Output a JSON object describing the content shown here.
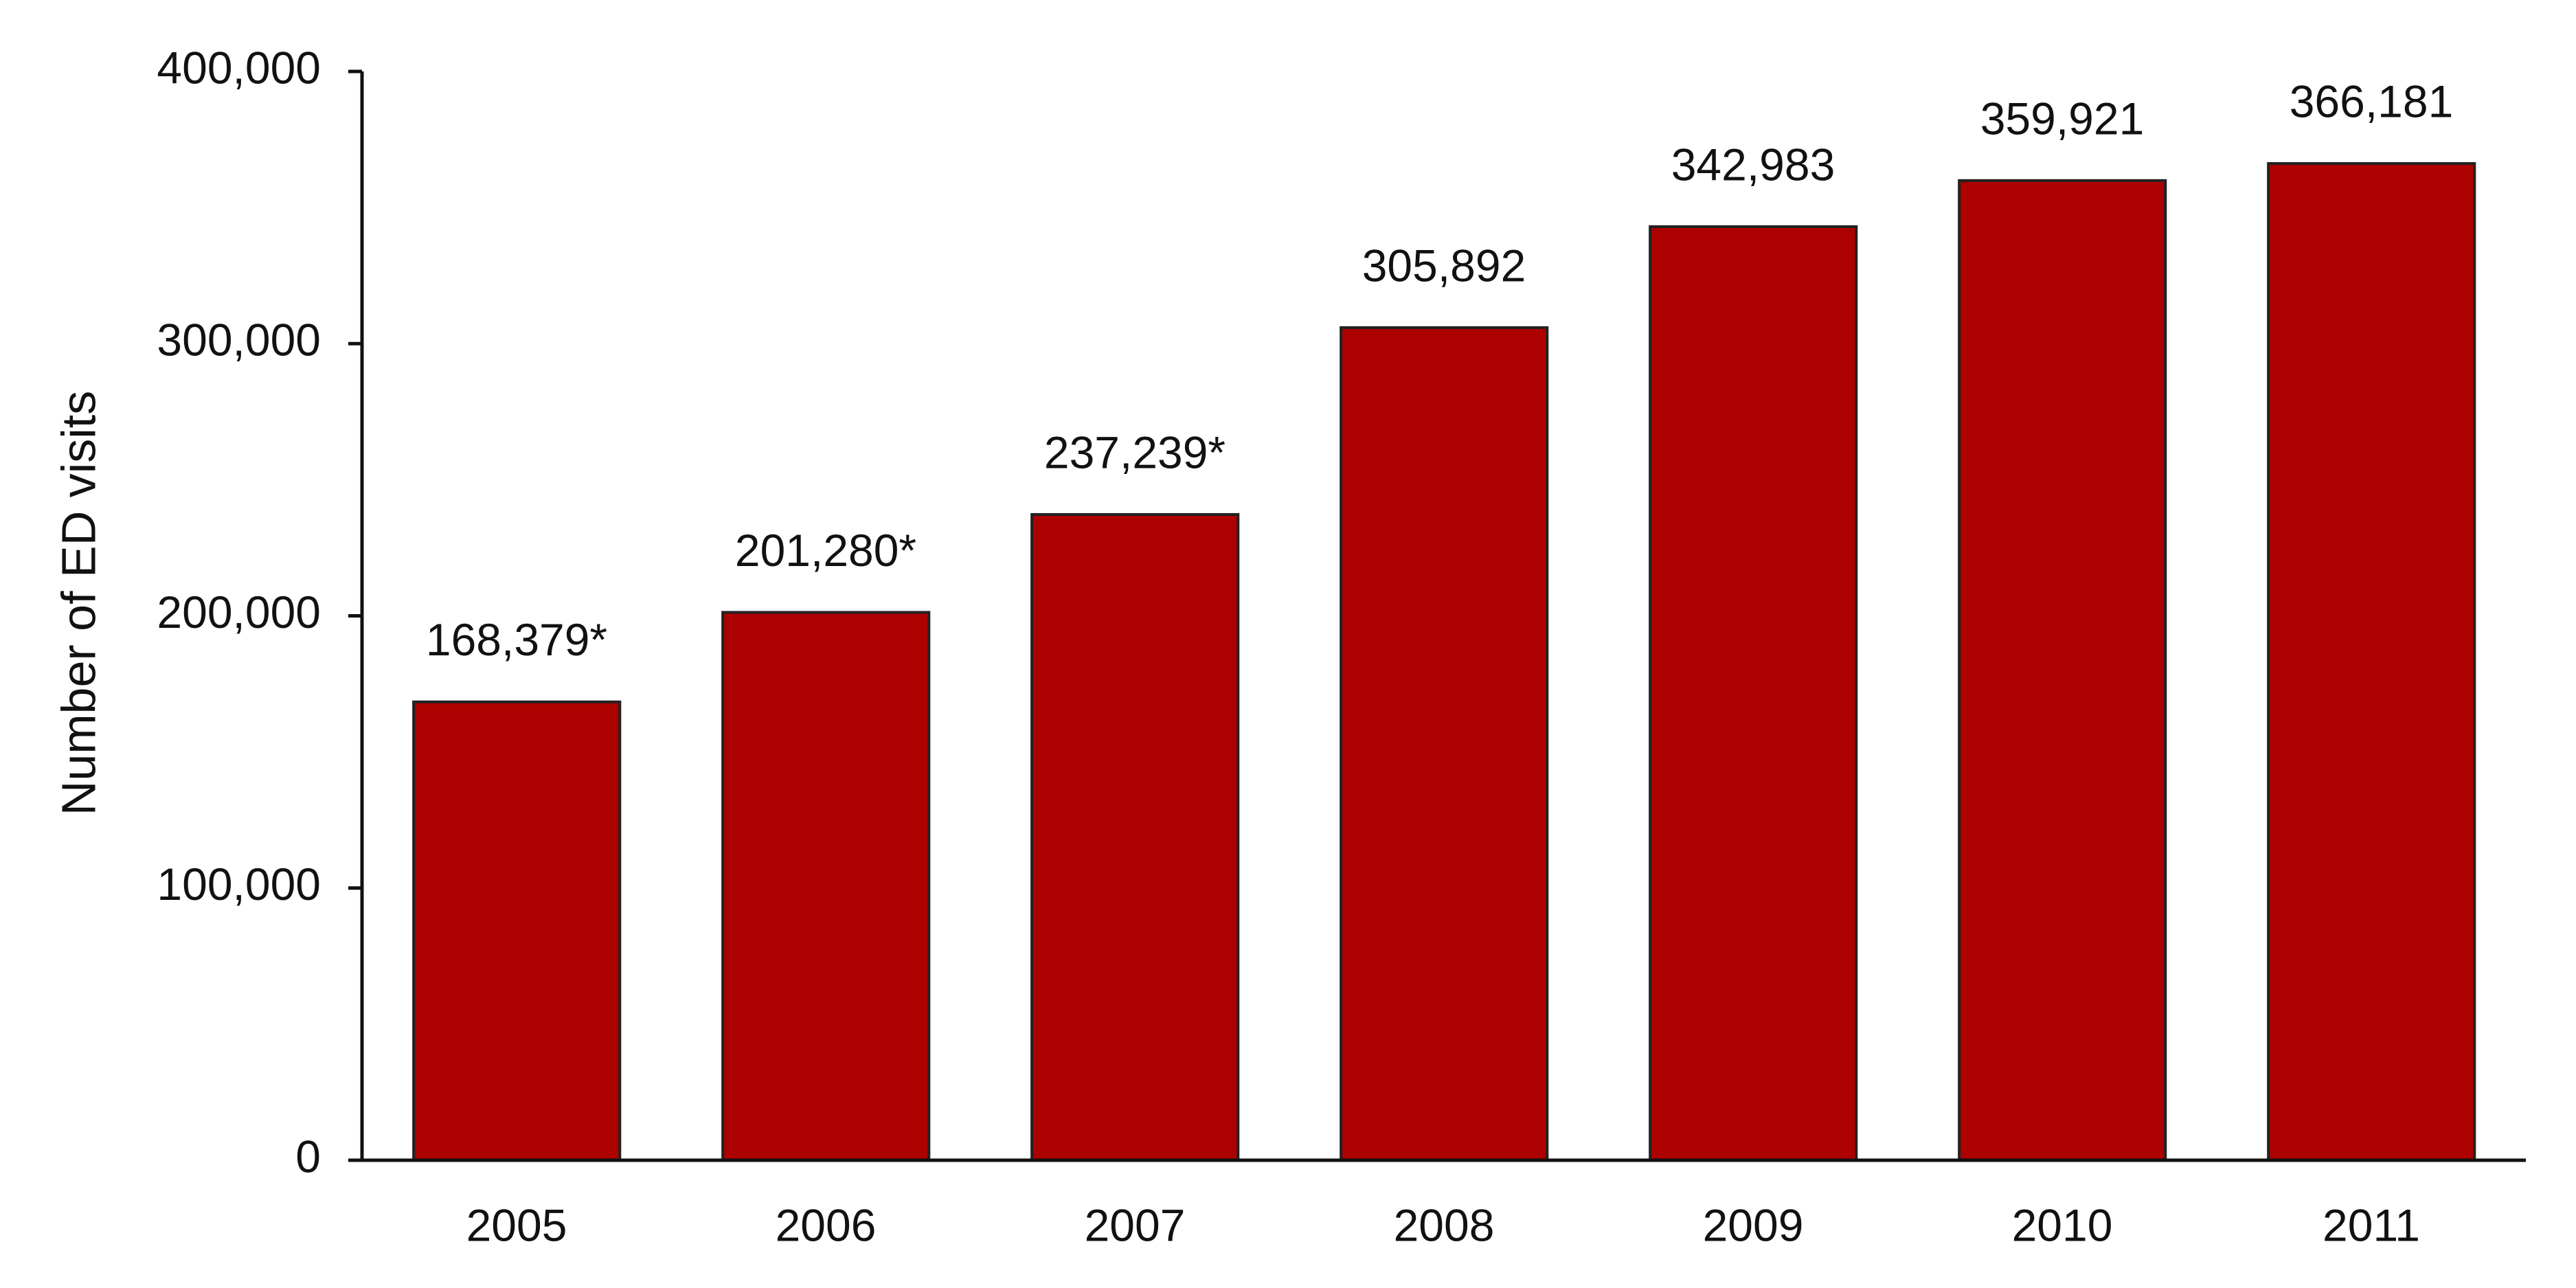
{
  "chart_data": {
    "type": "bar",
    "y_label": "Number of ED visits",
    "categories": [
      "2005",
      "2006",
      "2007",
      "2008",
      "2009",
      "2010",
      "2011"
    ],
    "values": [
      168379,
      201280,
      237239,
      305892,
      342983,
      359921,
      366181
    ],
    "value_labels": [
      "168,379*",
      "201,280*",
      "237,239*",
      "305,892",
      "342,983",
      "359,921",
      "366,181"
    ],
    "color": "#ad0000",
    "ylim": [
      0,
      400000
    ],
    "yticks": [
      0,
      {
        "value": 100000,
        "label": "100,000"
      },
      {
        "value": 200000,
        "label": "200,000"
      },
      {
        "value": 300000,
        "label": "300,000"
      },
      {
        "value": 400000,
        "label": "400,000"
      }
    ],
    "grid": false
  }
}
